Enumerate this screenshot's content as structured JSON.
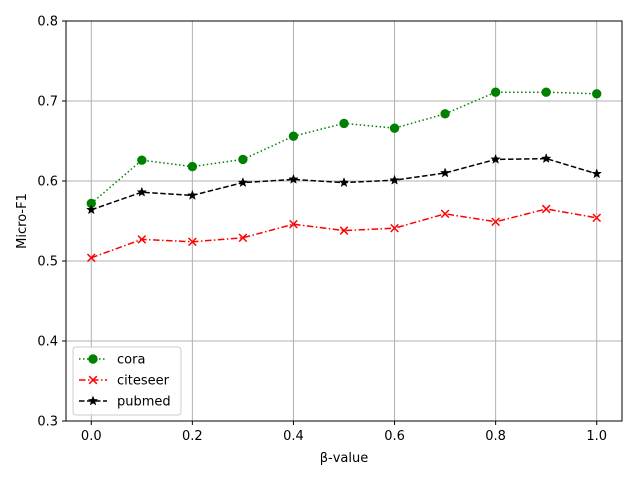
{
  "chart_data": {
    "type": "line",
    "title": "",
    "xlabel": "β-value",
    "ylabel": "Micro-F1",
    "xlim": [
      -0.05,
      1.05
    ],
    "ylim": [
      0.3,
      0.8
    ],
    "xticks": [
      0.0,
      0.2,
      0.4,
      0.6,
      0.8,
      1.0
    ],
    "xtick_labels": [
      "0.0",
      "0.2",
      "0.4",
      "0.6",
      "0.8",
      "1.0"
    ],
    "yticks": [
      0.3,
      0.4,
      0.5,
      0.6,
      0.7,
      0.8
    ],
    "ytick_labels": [
      "0.3",
      "0.4",
      "0.5",
      "0.6",
      "0.7",
      "0.8"
    ],
    "grid": true,
    "legend_position": "lower-left",
    "x": [
      0.0,
      0.1,
      0.2,
      0.3,
      0.4,
      0.5,
      0.6,
      0.7,
      0.8,
      0.9,
      1.0
    ],
    "series": [
      {
        "name": "cora",
        "color": "#008000",
        "line_style": "dotted",
        "marker": "circle",
        "values": [
          0.572,
          0.626,
          0.618,
          0.627,
          0.656,
          0.672,
          0.666,
          0.684,
          0.711,
          0.711,
          0.709
        ]
      },
      {
        "name": "citeseer",
        "color": "#ff0000",
        "line_style": "dash-dot",
        "marker": "x",
        "values": [
          0.504,
          0.527,
          0.524,
          0.529,
          0.546,
          0.538,
          0.541,
          0.559,
          0.549,
          0.565,
          0.554
        ]
      },
      {
        "name": "pubmed",
        "color": "#000000",
        "line_style": "dashed",
        "marker": "star",
        "values": [
          0.564,
          0.586,
          0.582,
          0.598,
          0.602,
          0.598,
          0.601,
          0.61,
          0.627,
          0.628,
          0.609
        ]
      }
    ]
  }
}
